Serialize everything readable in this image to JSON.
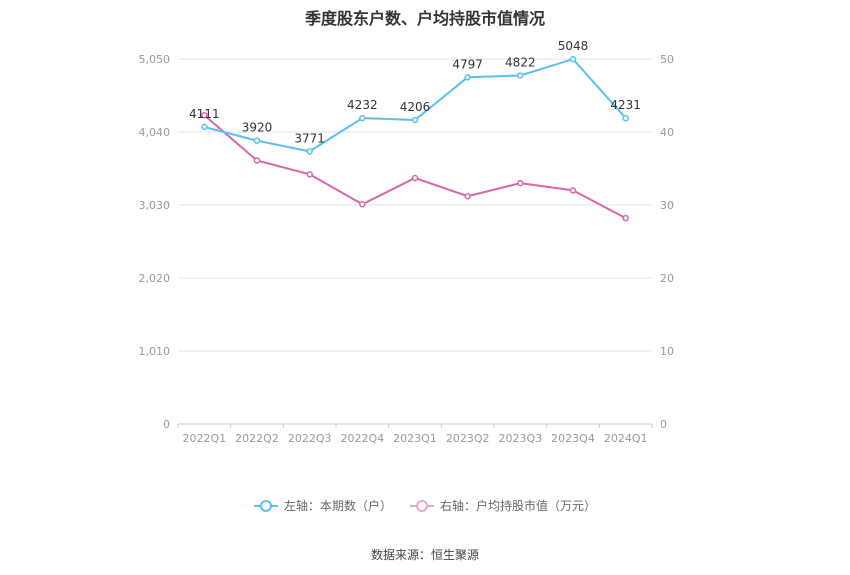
{
  "title": "季度股东户数、户均持股市值情况",
  "source": "数据来源：恒生聚源",
  "legend": [
    {
      "label": "左轴：本期数（户）",
      "color": "#5bc0eb",
      "swatch_color": "#5bc0eb"
    },
    {
      "label": "右轴：户均持股市值（万元）",
      "color": "#d966a6",
      "swatch_color": "#eaa6cf"
    }
  ],
  "chart_data": {
    "type": "line",
    "categories": [
      "2022Q1",
      "2022Q2",
      "2022Q3",
      "2022Q4",
      "2023Q1",
      "2023Q2",
      "2023Q3",
      "2023Q4",
      "2024Q1"
    ],
    "left_axis": {
      "ticks": [
        "0",
        "1,010",
        "2,020",
        "3,030",
        "4,040",
        "5,050"
      ],
      "range": [
        0,
        5050
      ]
    },
    "right_axis": {
      "ticks": [
        "0",
        "10",
        "20",
        "30",
        "40",
        "50"
      ],
      "range": [
        0,
        50
      ]
    },
    "series": [
      {
        "name": "左轴：本期数（户）",
        "axis": "left",
        "color": "#5bc0eb",
        "values": [
          4111,
          3920,
          3771,
          4232,
          4206,
          4797,
          4822,
          5048,
          4231
        ],
        "labels": [
          "4111",
          "3920",
          "3771",
          "4232",
          "4206",
          "4797",
          "4822",
          "5048",
          "4231"
        ]
      },
      {
        "name": "右轴：户均持股市值（万元）",
        "axis": "right",
        "color": "#d966a6",
        "values": [
          42.3,
          36.1,
          34.2,
          30.1,
          33.7,
          31.2,
          33.0,
          32.0,
          28.2
        ]
      }
    ],
    "grid": true
  }
}
